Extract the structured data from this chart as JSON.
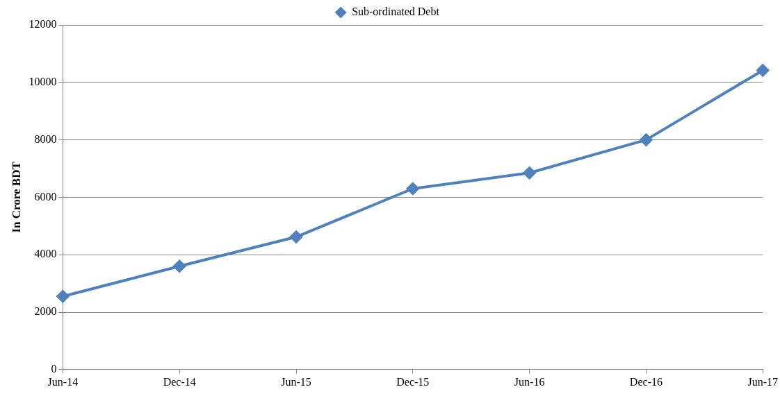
{
  "chart_data": {
    "type": "line",
    "ylabel": "In Crore BDT",
    "categories": [
      "Jun-14",
      "Dec-14",
      "Jun-15",
      "Dec-15",
      "Jun-16",
      "Dec-16",
      "Jun-17"
    ],
    "series": [
      {
        "name": "Sub-ordinated Debt",
        "color": "#4f81bd",
        "values": [
          2550,
          3600,
          4620,
          6300,
          6850,
          8000,
          10420
        ]
      }
    ],
    "ylim": [
      0,
      12000
    ],
    "yticks": [
      0,
      2000,
      4000,
      6000,
      8000,
      10000,
      12000
    ],
    "grid": "y",
    "legend": "top",
    "marker": "diamond",
    "line_style": "solid"
  }
}
